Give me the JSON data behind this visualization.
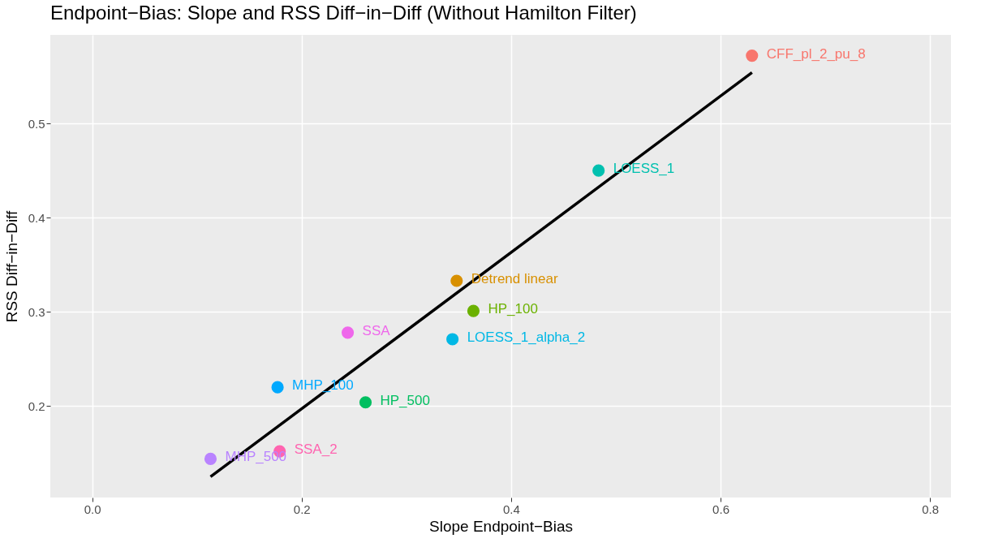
{
  "chart_data": {
    "type": "scatter",
    "title": "Endpoint−Bias: Slope and RSS Diff−in−Diff (Without Hamilton Filter)",
    "xlabel": "Slope Endpoint−Bias",
    "ylabel": "RSS Diff−in−Diff",
    "xlim": [
      -0.04,
      0.82
    ],
    "xticks": [
      {
        "value": 0,
        "label": "0.0"
      },
      0.2,
      0.4,
      0.6,
      0.8
    ],
    "ylim": [
      0.103,
      0.594
    ],
    "yticks": [
      0.2,
      0.3,
      0.4,
      0.5
    ],
    "grid": true,
    "marker": "circle",
    "series": [
      {
        "name": "CFF_pl_2_pu_8",
        "color": "#f8766d",
        "x": [
          0.63
        ],
        "values": [
          0.572
        ]
      },
      {
        "name": "Detrend linear",
        "color": "#d89000",
        "x": [
          0.348
        ],
        "values": [
          0.333
        ]
      },
      {
        "name": "HP_100",
        "color": "#6bb100",
        "x": [
          0.364
        ],
        "values": [
          0.301
        ]
      },
      {
        "name": "HP_500",
        "color": "#00bf60",
        "x": [
          0.261
        ],
        "values": [
          0.204
        ]
      },
      {
        "name": "LOESS_1",
        "color": "#00c0af",
        "x": [
          0.4835
        ],
        "values": [
          0.45
        ]
      },
      {
        "name": "LOESS_1_alpha_2",
        "color": "#00b8e5",
        "x": [
          0.344
        ],
        "values": [
          0.271
        ]
      },
      {
        "name": "MHP_100",
        "color": "#00a9ff",
        "x": [
          0.177
        ],
        "values": [
          0.22
        ]
      },
      {
        "name": "MHP_500",
        "color": "#b983ff",
        "x": [
          0.113
        ],
        "values": [
          0.144
        ]
      },
      {
        "name": "SSA",
        "color": "#ef67eb",
        "x": [
          0.244
        ],
        "values": [
          0.278
        ]
      },
      {
        "name": "SSA_2",
        "color": "#ff64b0",
        "x": [
          0.179
        ],
        "values": [
          0.152
        ]
      },
      {
        "type": "line",
        "marker": "none",
        "color": "#000000",
        "x": [
          0.113,
          0.63
        ],
        "values": [
          0.125,
          0.554
        ]
      }
    ]
  }
}
